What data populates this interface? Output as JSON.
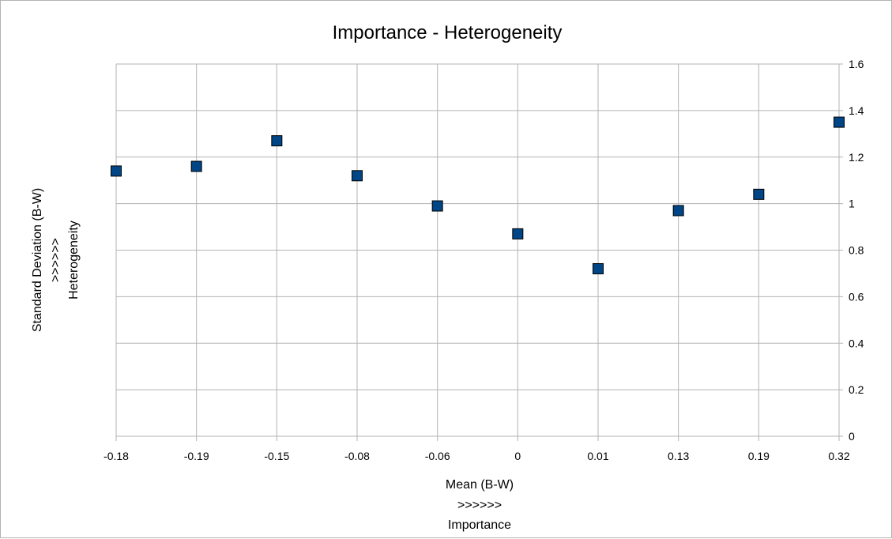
{
  "chart_data": {
    "type": "scatter",
    "title": "Importance - Heterogeneity",
    "x_categories": [
      "-0.18",
      "-0.19",
      "-0.15",
      "-0.08",
      "-0.06",
      "0",
      "0.01",
      "0.13",
      "0.19",
      "0.32"
    ],
    "series": [
      {
        "x": [
          "-0.18",
          "-0.19",
          "-0.15",
          "-0.08",
          "-0.06",
          "0",
          "0.01",
          "0.13",
          "0.19",
          "0.32"
        ],
        "y": [
          1.14,
          1.16,
          1.27,
          1.12,
          0.99,
          0.87,
          0.72,
          0.97,
          1.04,
          1.35
        ],
        "marker": "square",
        "color": "#004586"
      }
    ],
    "ylim": [
      0,
      1.6
    ],
    "y_ticks": [
      "0",
      "0.2",
      "0.4",
      "0.6",
      "0.8",
      "1",
      "1.2",
      "1.4",
      "1.6"
    ],
    "y_axis_side": "right",
    "grid": true,
    "xlabel_lines": [
      "Mean (B-W)",
      ">>>>>>",
      "Importance"
    ],
    "ylabel_lines": [
      "Standard Deviation (B-W)",
      ">>>>>>",
      "Heterogeneity"
    ]
  }
}
